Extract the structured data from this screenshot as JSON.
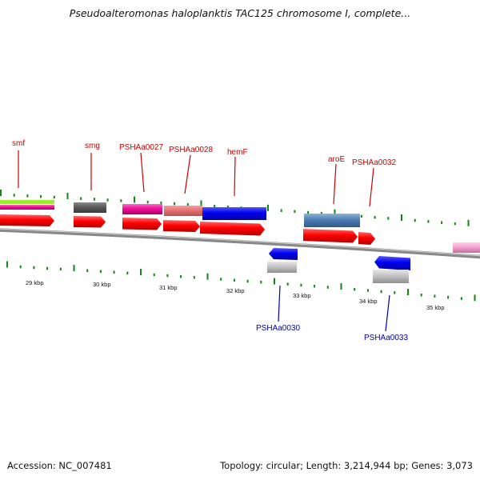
{
  "title": "Pseudoalteromonas haloplanktis TAC125 chromosome I, complete...",
  "footer": {
    "accession": "Accession: NC_007481",
    "summary": "Topology: circular; Length: 3,214,944 bp; Genes: 3,073"
  },
  "colors": {
    "label_top": "#cc0000",
    "label_bottom": "#0000aa",
    "tick": "#118811",
    "backbone": "#888888",
    "cds": "#ff0000"
  },
  "scale_labels": [
    "29 kbp",
    "30 kbp",
    "31 kbp",
    "32 kbp",
    "33 kbp",
    "34 kbp",
    "35 kbp"
  ],
  "gene_labels_top": [
    "smf",
    "smg",
    "PSHAa0027",
    "PSHAa0028",
    "hemF",
    "aroE",
    "PSHAa0032"
  ],
  "gene_labels_bottom": [
    "PSHAa0030",
    "PSHAa0033"
  ]
}
